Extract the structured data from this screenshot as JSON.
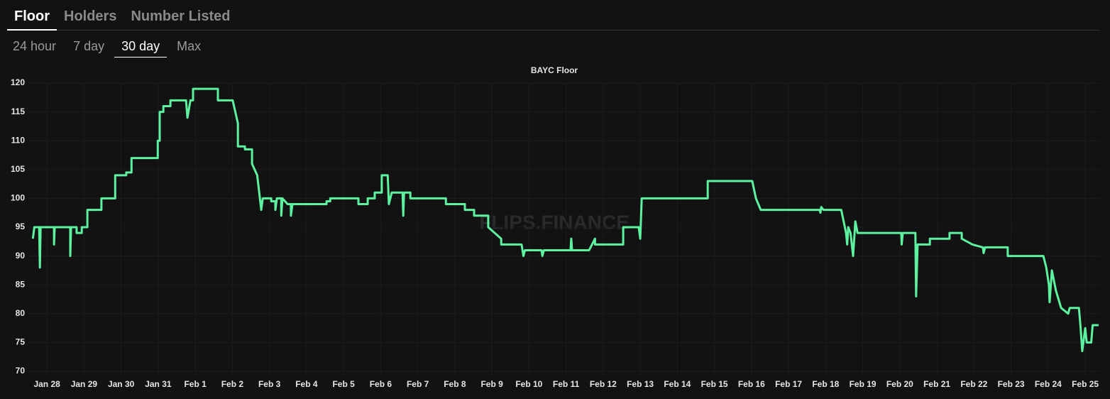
{
  "tabs": [
    "Floor",
    "Holders",
    "Number Listed"
  ],
  "ranges": [
    "24 hour",
    "7 day",
    "30 day",
    "Max"
  ],
  "chart_data": {
    "type": "line",
    "title": "BAYC Floor",
    "watermark": "FLIPS.FINANCE",
    "grid": true,
    "xlim": [
      -0.5,
      28.4
    ],
    "xticks": [
      {
        "value": 0,
        "label": "Jan 28"
      },
      {
        "value": 1,
        "label": "Jan 29"
      },
      {
        "value": 2,
        "label": "Jan 30"
      },
      {
        "value": 3,
        "label": "Jan 31"
      },
      {
        "value": 4,
        "label": "Feb 1"
      },
      {
        "value": 5,
        "label": "Feb 2"
      },
      {
        "value": 6,
        "label": "Feb 3"
      },
      {
        "value": 7,
        "label": "Feb 4"
      },
      {
        "value": 8,
        "label": "Feb 5"
      },
      {
        "value": 9,
        "label": "Feb 6"
      },
      {
        "value": 10,
        "label": "Feb 7"
      },
      {
        "value": 11,
        "label": "Feb 8"
      },
      {
        "value": 12,
        "label": "Feb 9"
      },
      {
        "value": 13,
        "label": "Feb 10"
      },
      {
        "value": 14,
        "label": "Feb 11"
      },
      {
        "value": 15,
        "label": "Feb 12"
      },
      {
        "value": 16,
        "label": "Feb 13"
      },
      {
        "value": 17,
        "label": "Feb 14"
      },
      {
        "value": 18,
        "label": "Feb 15"
      },
      {
        "value": 19,
        "label": "Feb 16"
      },
      {
        "value": 20,
        "label": "Feb 17"
      },
      {
        "value": 21,
        "label": "Feb 18"
      },
      {
        "value": 22,
        "label": "Feb 19"
      },
      {
        "value": 23,
        "label": "Feb 20"
      },
      {
        "value": 24,
        "label": "Feb 21"
      },
      {
        "value": 25,
        "label": "Feb 22"
      },
      {
        "value": 26,
        "label": "Feb 23"
      },
      {
        "value": 27,
        "label": "Feb 24"
      },
      {
        "value": 28,
        "label": "Feb 25"
      }
    ],
    "ylim": [
      70,
      120
    ],
    "yticks": [
      70,
      75,
      80,
      85,
      90,
      95,
      100,
      105,
      110,
      115,
      120
    ],
    "series": [
      {
        "color": "#5df2a0",
        "x": [
          -0.38,
          -0.34,
          -0.21,
          -0.19,
          -0.17,
          0.19,
          0.19,
          0.21,
          0.63,
          0.63,
          0.65,
          0.8,
          0.8,
          0.94,
          0.94,
          1.09,
          1.09,
          1.47,
          1.47,
          1.84,
          1.84,
          2.14,
          2.14,
          2.28,
          2.28,
          2.99,
          2.99,
          3.04,
          3.04,
          3.14,
          3.14,
          3.33,
          3.33,
          3.75,
          3.79,
          3.87,
          3.94,
          3.94,
          4.61,
          4.61,
          5.01,
          5.15,
          5.15,
          5.34,
          5.34,
          5.53,
          5.53,
          5.67,
          5.78,
          5.82,
          6.05,
          6.05,
          6.16,
          6.16,
          6.2,
          6.32,
          6.32,
          6.35,
          6.49,
          6.58,
          6.58,
          6.62,
          7.54,
          7.54,
          7.64,
          7.64,
          8.4,
          8.4,
          8.65,
          8.65,
          8.84,
          8.84,
          9.03,
          9.03,
          9.19,
          9.22,
          9.3,
          9.59,
          9.61,
          9.63,
          9.8,
          9.8,
          10.76,
          10.76,
          11.27,
          11.27,
          11.52,
          11.52,
          11.9,
          11.9,
          12.25,
          12.25,
          12.8,
          12.85,
          12.89,
          13.34,
          13.36,
          13.4,
          14.12,
          14.14,
          14.16,
          14.62,
          14.78,
          14.78,
          15.54,
          15.54,
          15.96,
          16.0,
          16.04,
          17.82,
          17.82,
          19.02,
          19.12,
          19.25,
          20.84,
          20.86,
          20.88,
          20.94,
          21.42,
          21.55,
          21.58,
          21.61,
          21.67,
          21.74,
          21.8,
          21.86,
          23.04,
          23.05,
          23.08,
          23.42,
          23.44,
          23.48,
          23.81,
          23.81,
          24.34,
          24.34,
          24.67,
          24.67,
          24.96,
          25.24,
          25.26,
          25.3,
          25.91,
          25.91,
          26.87,
          26.95,
          27.02,
          27.04,
          27.1,
          27.21,
          27.35,
          27.54,
          27.58,
          27.83,
          27.87,
          27.92,
          28.0,
          28.04,
          28.16,
          28.2,
          28.36
        ],
        "values": [
          93,
          95,
          95,
          88,
          95,
          95,
          92,
          95,
          95,
          90,
          95,
          95,
          94,
          94,
          95,
          95,
          98,
          98,
          100,
          100,
          104,
          104,
          104.5,
          104.5,
          107,
          107,
          110,
          110,
          115,
          115,
          116,
          116,
          117,
          117,
          114,
          117,
          117,
          119,
          119,
          117,
          117,
          113,
          109,
          109,
          108.5,
          108.5,
          106,
          104,
          98,
          100,
          100,
          99.5,
          99.5,
          98,
          100,
          100,
          97,
          100,
          99,
          99,
          97,
          99,
          99,
          99.5,
          99.5,
          100,
          100,
          99,
          99,
          100,
          100,
          101,
          101,
          104,
          104,
          99,
          101,
          101,
          97,
          101,
          101,
          100,
          100,
          99,
          99,
          98,
          98,
          97,
          97,
          95,
          93,
          92,
          92,
          90,
          91,
          91,
          90,
          91,
          91,
          93,
          91,
          91,
          93,
          92,
          92,
          95,
          95,
          93,
          100,
          100,
          103,
          103,
          100,
          98,
          98,
          97.5,
          98.5,
          98,
          98,
          94,
          92,
          95,
          94,
          90,
          96,
          94,
          94,
          92,
          94,
          94,
          83,
          92,
          92,
          93,
          93,
          94,
          94,
          93,
          92,
          91.5,
          90.5,
          91.5,
          91.5,
          90,
          90,
          88,
          85,
          82,
          87.5,
          84,
          81,
          80,
          81,
          81,
          78,
          73.5,
          77.5,
          75,
          75,
          78,
          78
        ]
      }
    ]
  }
}
